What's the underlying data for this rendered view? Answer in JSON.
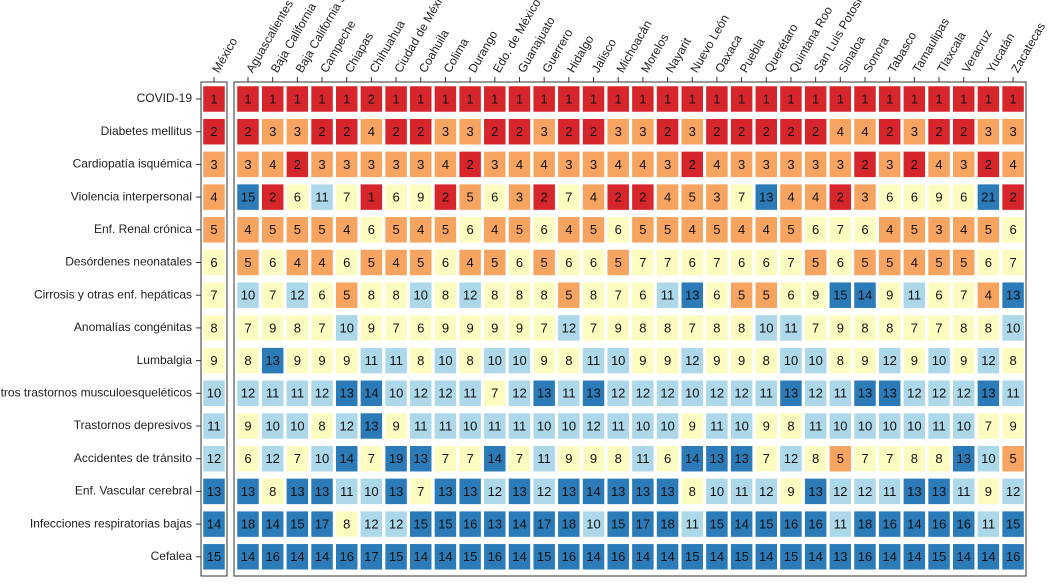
{
  "chart_data": {
    "type": "heatmap",
    "columns": [
      "México",
      "Aguascalientes",
      "Baja California",
      "Baja California Sur",
      "Campeche",
      "Chiapas",
      "Chihuahua",
      "Ciudad de México",
      "Coahuila",
      "Colima",
      "Durango",
      "Edo. de México",
      "Guanajuato",
      "Guerrero",
      "Hidalgo",
      "Jalisco",
      "Michoacán",
      "Morelos",
      "Nayarit",
      "Nuevo León",
      "Oaxaca",
      "Puebla",
      "Querétaro",
      "Quintana Roo",
      "San Luis Potosí",
      "Sinaloa",
      "Sonora",
      "Tabasco",
      "Tamaulipas",
      "Tlaxcala",
      "Veracruz",
      "Yucatán",
      "Zacatecas"
    ],
    "rows": [
      "COVID-19",
      "Diabetes mellitus",
      "Cardiopatía isquémica",
      "Violencia interpersonal",
      "Enf. Renal crónica",
      "Desórdenes neonatales",
      "Cirrosis y otras enf. hepáticas",
      "Anomalías congénitas",
      "Lumbalgia",
      "Otros trastornos musculoesqueléticos",
      "Trastornos depresivos",
      "Accidentes de tránsito",
      "Enf. Vascular cerebral",
      "Infecciones respiratorias bajas",
      "Cefalea"
    ],
    "values": [
      [
        1,
        1,
        1,
        1,
        1,
        1,
        2,
        1,
        1,
        1,
        1,
        1,
        1,
        1,
        1,
        1,
        1,
        1,
        1,
        1,
        1,
        1,
        1,
        1,
        1,
        1,
        1,
        1,
        1,
        1,
        1,
        1,
        1
      ],
      [
        2,
        2,
        3,
        3,
        2,
        2,
        4,
        2,
        2,
        3,
        3,
        2,
        2,
        3,
        2,
        2,
        3,
        3,
        2,
        3,
        2,
        2,
        2,
        2,
        2,
        4,
        4,
        2,
        3,
        2,
        2,
        3,
        3
      ],
      [
        3,
        3,
        4,
        2,
        3,
        3,
        3,
        3,
        3,
        4,
        2,
        3,
        4,
        4,
        3,
        3,
        4,
        4,
        3,
        2,
        4,
        3,
        3,
        3,
        3,
        3,
        2,
        3,
        2,
        4,
        3,
        2,
        4
      ],
      [
        4,
        15,
        2,
        6,
        11,
        7,
        1,
        6,
        9,
        2,
        5,
        6,
        3,
        2,
        7,
        4,
        2,
        2,
        4,
        5,
        3,
        7,
        13,
        4,
        4,
        2,
        3,
        6,
        6,
        9,
        6,
        21,
        2
      ],
      [
        5,
        4,
        5,
        5,
        5,
        4,
        6,
        5,
        4,
        5,
        6,
        4,
        5,
        6,
        4,
        5,
        6,
        5,
        5,
        4,
        5,
        4,
        4,
        5,
        6,
        7,
        6,
        4,
        5,
        3,
        4,
        5,
        6
      ],
      [
        6,
        5,
        6,
        4,
        4,
        6,
        5,
        4,
        5,
        6,
        4,
        5,
        6,
        5,
        6,
        6,
        5,
        7,
        7,
        6,
        7,
        6,
        6,
        7,
        5,
        6,
        5,
        5,
        4,
        5,
        5,
        6,
        7
      ],
      [
        7,
        10,
        7,
        12,
        6,
        5,
        8,
        8,
        10,
        8,
        12,
        8,
        8,
        8,
        5,
        8,
        7,
        6,
        11,
        13,
        6,
        5,
        5,
        6,
        9,
        15,
        14,
        9,
        11,
        6,
        7,
        4,
        13
      ],
      [
        8,
        7,
        9,
        8,
        7,
        10,
        9,
        7,
        6,
        9,
        9,
        9,
        9,
        7,
        12,
        7,
        9,
        8,
        8,
        7,
        8,
        8,
        10,
        11,
        7,
        9,
        8,
        8,
        7,
        7,
        8,
        8,
        10
      ],
      [
        9,
        8,
        13,
        9,
        9,
        9,
        11,
        11,
        8,
        10,
        8,
        10,
        10,
        9,
        8,
        11,
        10,
        9,
        9,
        12,
        9,
        9,
        8,
        10,
        10,
        8,
        9,
        12,
        9,
        10,
        9,
        12,
        8
      ],
      [
        10,
        12,
        11,
        11,
        12,
        13,
        14,
        10,
        12,
        12,
        11,
        7,
        12,
        13,
        11,
        13,
        12,
        12,
        12,
        10,
        12,
        12,
        11,
        13,
        12,
        11,
        13,
        13,
        12,
        12,
        12,
        13,
        11
      ],
      [
        11,
        9,
        10,
        10,
        8,
        12,
        13,
        9,
        11,
        11,
        10,
        11,
        11,
        10,
        10,
        12,
        11,
        10,
        10,
        9,
        11,
        10,
        9,
        8,
        11,
        10,
        10,
        10,
        10,
        11,
        10,
        7,
        9
      ],
      [
        12,
        6,
        12,
        7,
        10,
        14,
        7,
        19,
        13,
        7,
        7,
        14,
        7,
        11,
        9,
        9,
        8,
        11,
        6,
        14,
        13,
        13,
        7,
        12,
        8,
        5,
        7,
        7,
        8,
        8,
        13,
        10,
        5
      ],
      [
        13,
        13,
        8,
        13,
        13,
        11,
        10,
        13,
        7,
        13,
        13,
        12,
        13,
        12,
        13,
        14,
        13,
        13,
        13,
        8,
        10,
        11,
        12,
        9,
        13,
        12,
        12,
        11,
        13,
        13,
        11,
        9,
        12
      ],
      [
        14,
        18,
        14,
        15,
        17,
        8,
        12,
        12,
        15,
        15,
        16,
        13,
        14,
        17,
        18,
        10,
        15,
        17,
        18,
        11,
        15,
        14,
        15,
        16,
        16,
        11,
        18,
        16,
        14,
        16,
        16,
        11,
        15
      ],
      [
        15,
        14,
        16,
        14,
        14,
        16,
        17,
        15,
        14,
        14,
        15,
        16,
        14,
        15,
        16,
        14,
        16,
        14,
        14,
        15,
        14,
        15,
        14,
        15,
        14,
        13,
        16,
        14,
        14,
        15,
        14,
        14,
        16
      ]
    ],
    "color_scale": [
      {
        "max": 2,
        "color": "#d7262b"
      },
      {
        "max": 5,
        "color": "#f6a45f"
      },
      {
        "max": 9,
        "color": "#fdfcc0"
      },
      {
        "max": 12,
        "color": "#acd8ea"
      },
      {
        "max": 99,
        "color": "#2b7bb9"
      }
    ]
  }
}
